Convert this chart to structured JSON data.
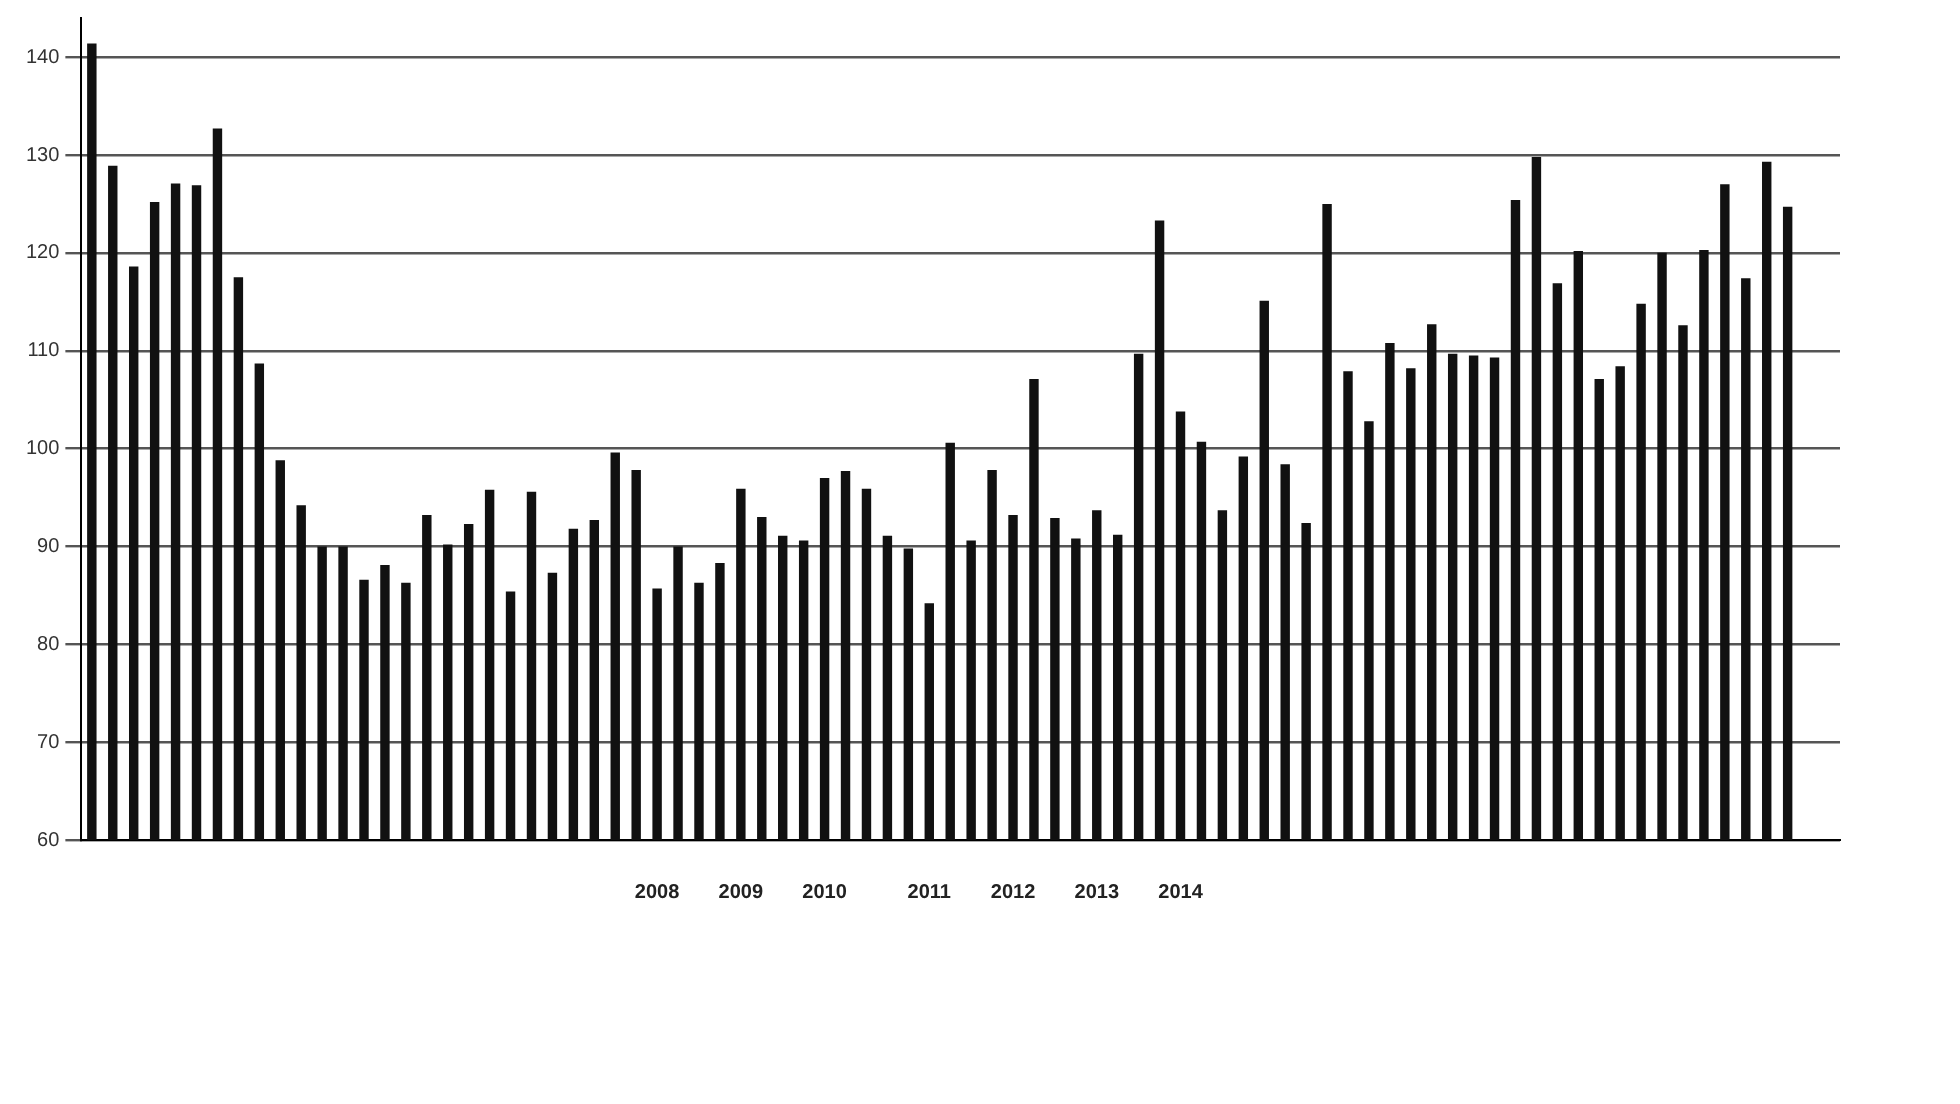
{
  "chart_data": {
    "type": "bar",
    "categories": [
      null,
      null,
      null,
      null,
      null,
      null,
      null,
      null,
      null,
      null,
      null,
      null,
      null,
      null,
      null,
      null,
      null,
      null,
      null,
      null,
      null,
      null,
      null,
      null,
      null,
      null,
      null,
      "2008",
      null,
      null,
      null,
      "2009",
      null,
      null,
      null,
      "2010",
      null,
      null,
      null,
      null,
      "2011",
      null,
      null,
      null,
      "2012",
      null,
      null,
      null,
      "2013",
      null,
      null,
      null,
      "2014",
      null,
      null,
      null,
      null,
      null,
      null,
      null,
      null,
      null,
      null,
      null,
      null,
      null,
      null,
      null,
      null,
      null,
      null,
      null,
      null,
      null,
      null,
      null,
      null,
      null,
      null,
      null,
      null,
      null,
      null,
      null
    ],
    "values": [
      141.4,
      128.9,
      118.6,
      125.2,
      127.1,
      126.9,
      132.7,
      117.5,
      108.7,
      98.8,
      94.2,
      90.0,
      90.0,
      86.6,
      88.1,
      86.3,
      93.2,
      90.2,
      92.3,
      95.8,
      85.4,
      95.6,
      87.3,
      91.8,
      92.7,
      99.6,
      97.8,
      85.7,
      90.0,
      86.3,
      88.3,
      95.9,
      93.0,
      91.1,
      90.6,
      97.0,
      97.7,
      95.9,
      91.1,
      89.8,
      84.2,
      100.6,
      90.6,
      97.8,
      93.2,
      107.1,
      92.9,
      90.8,
      93.7,
      91.2,
      109.7,
      123.3,
      103.8,
      100.7,
      93.7,
      99.2,
      115.1,
      98.4,
      92.4,
      125.0,
      107.9,
      102.8,
      110.8,
      108.2,
      112.7,
      109.7,
      109.5,
      109.3,
      125.4,
      129.8,
      116.9,
      120.2,
      107.1,
      108.4,
      114.8,
      120.0,
      112.6,
      120.3,
      127.0,
      117.4,
      129.3,
      124.7,
      null,
      null
    ],
    "color": "#111111",
    "ylim": [
      60,
      144
    ],
    "yticks": [
      60,
      70,
      80,
      90,
      100,
      110,
      120,
      130,
      140
    ],
    "grid": "y"
  }
}
